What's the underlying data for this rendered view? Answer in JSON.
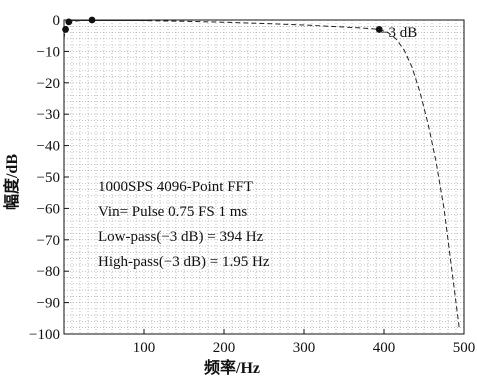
{
  "chart_data": {
    "type": "line",
    "xlabel": "频率/Hz",
    "ylabel": "幅度/dB",
    "xlim": [
      0,
      500
    ],
    "ylim": [
      -100,
      0
    ],
    "xticks": [
      100,
      200,
      300,
      400,
      500
    ],
    "yticks": [
      0,
      -10,
      -20,
      -30,
      -40,
      -50,
      -60,
      -70,
      -80,
      -90,
      -100
    ],
    "grid": "dotted",
    "series": [
      {
        "x": [
          0,
          1,
          1.95,
          3,
          5,
          10,
          20,
          35,
          60,
          100,
          150,
          200,
          250,
          300,
          340,
          370,
          385,
          394,
          405,
          415,
          425,
          435,
          445,
          455,
          465,
          475,
          480,
          485,
          490,
          494
        ],
        "y": [
          -6,
          -4,
          -3,
          -2,
          -1,
          -0.5,
          -0.2,
          -0.1,
          -0.1,
          -0.2,
          -0.4,
          -0.7,
          -1.1,
          -1.6,
          -2.1,
          -2.5,
          -2.8,
          -3,
          -4,
          -6,
          -9.5,
          -15,
          -23,
          -33,
          -45,
          -60,
          -70,
          -80,
          -90,
          -98
        ]
      }
    ],
    "markers": [
      {
        "x": 1.95,
        "y": -3
      },
      {
        "x": 6,
        "y": -0.6
      },
      {
        "x": 35,
        "y": 0
      },
      {
        "x": 394,
        "y": -3
      }
    ],
    "annotations": {
      "cutoff_label": "−3 dB",
      "info_lines": [
        "1000SPS 4096-Point FFT",
        "Vin= Pulse 0.75 FS 1 ms",
        "Low-pass(−3 dB) = 394 Hz",
        "High-pass(−3 dB) = 1.95 Hz"
      ]
    },
    "colors": {
      "line": "#222222",
      "grid": "#9a9a9a",
      "axis": "#111111",
      "marker": "#111111"
    }
  }
}
